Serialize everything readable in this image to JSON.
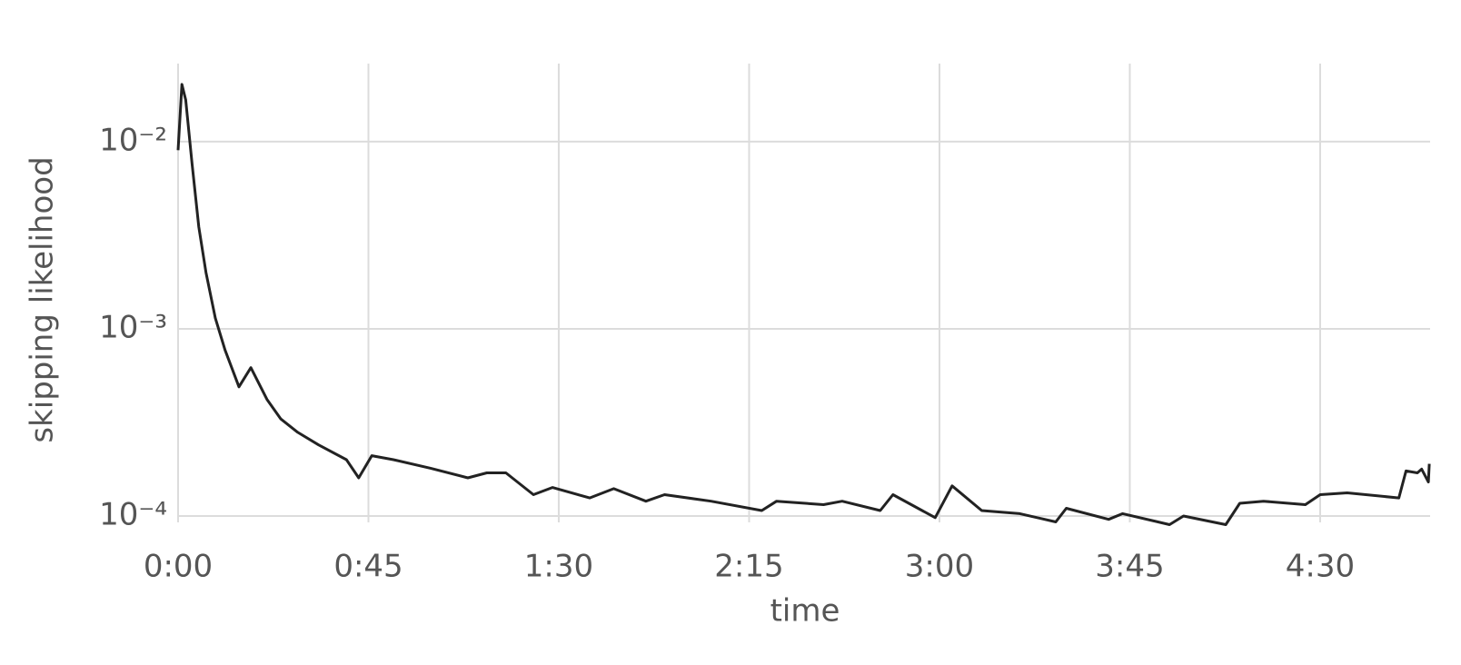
{
  "chart_data": {
    "type": "line",
    "xlabel": "time",
    "ylabel": "skipping likelihood",
    "log_y": true,
    "grid": true,
    "xlim": [
      0,
      296
    ],
    "ylim": [
      0.0261,
      9.25e-05
    ],
    "xticks": [
      {
        "value": 0,
        "label": "0:00"
      },
      {
        "value": 45,
        "label": "0:45"
      },
      {
        "value": 90,
        "label": "1:30"
      },
      {
        "value": 135,
        "label": "2:15"
      },
      {
        "value": 180,
        "label": "3:00"
      },
      {
        "value": 225,
        "label": "3:45"
      },
      {
        "value": 270,
        "label": "4:30"
      }
    ],
    "yticks": [
      {
        "value": 0.01,
        "label": "10⁻²"
      },
      {
        "value": 0.001,
        "label": "10⁻³"
      },
      {
        "value": 0.0001,
        "label": "10⁻⁴"
      }
    ],
    "series": [
      {
        "color": "#222222",
        "x": [
          0,
          0.9,
          1.8,
          3.3,
          4.9,
          6.6,
          8.8,
          11.1,
          14.4,
          17.2,
          21,
          24.3,
          28.3,
          33.2,
          39.8,
          42.7,
          45.8,
          50.9,
          59.7,
          68.5,
          73,
          77.5,
          84,
          88.5,
          97.3,
          103,
          110.6,
          115,
          126,
          138,
          141.5,
          152.6,
          157,
          166,
          169,
          179,
          183,
          190,
          199,
          207.5,
          210,
          220,
          223.3,
          234.4,
          237.7,
          247.7,
          251,
          256.6,
          266.5,
          270,
          276.4,
          288.6,
          290.3,
          293,
          294,
          295.6,
          295.8
        ],
        "values": [
          0.009,
          0.0202,
          0.0167,
          0.0076,
          0.0035,
          0.002,
          0.00114,
          0.00077,
          0.00049,
          0.00062,
          0.00042,
          0.00033,
          0.00028,
          0.00024,
          0.0002,
          0.00016,
          0.00021,
          0.0002,
          0.00018,
          0.00016,
          0.00017,
          0.00017,
          0.00013,
          0.000142,
          0.000125,
          0.00014,
          0.00012,
          0.00013,
          0.00012,
          0.000107,
          0.00012,
          0.000115,
          0.00012,
          0.000107,
          0.00013,
          9.8e-05,
          0.000145,
          0.000107,
          0.000103,
          9.3e-05,
          0.00011,
          9.6e-05,
          0.000103,
          9e-05,
          0.0001,
          9e-05,
          0.000117,
          0.00012,
          0.000115,
          0.00013,
          0.000133,
          0.000125,
          0.000174,
          0.00017,
          0.000178,
          0.000152,
          0.00019
        ]
      }
    ]
  }
}
